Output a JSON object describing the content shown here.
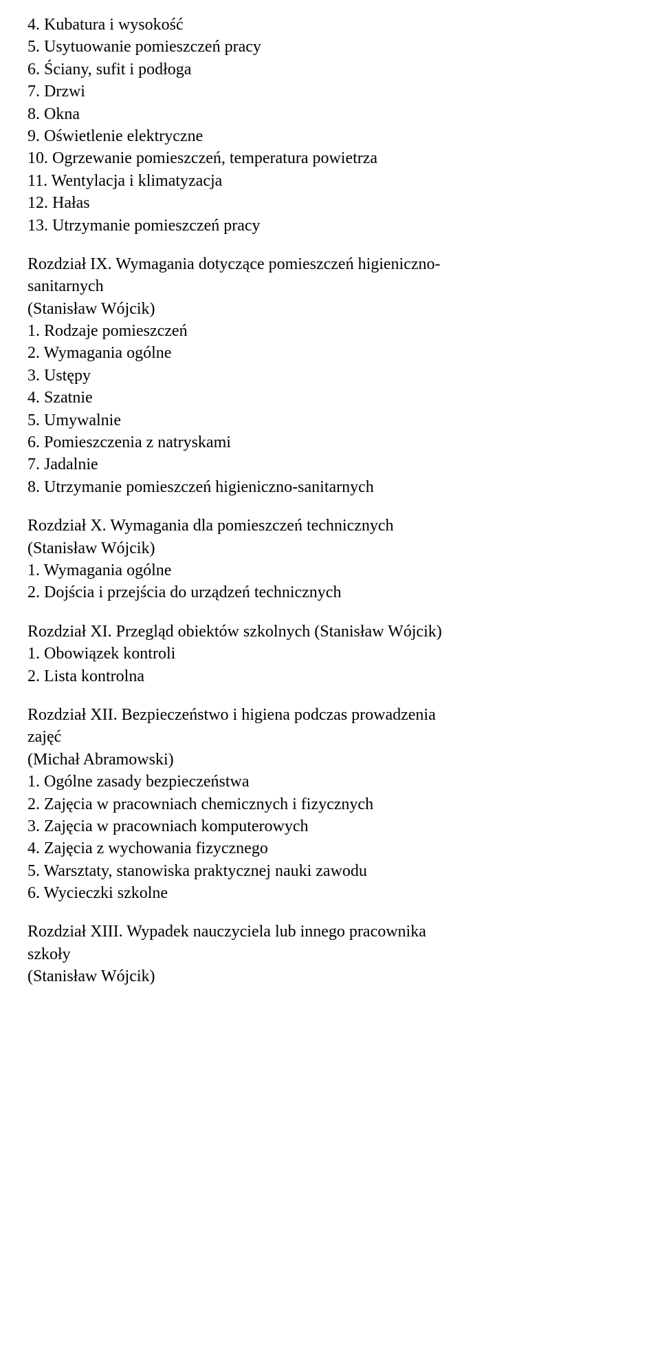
{
  "doc": {
    "font_family": "Times New Roman",
    "font_size_pt": 18,
    "text_color": "#000000",
    "background_color": "#ffffff"
  },
  "section1": {
    "items": [
      "4. Kubatura i wysokość",
      "5. Usytuowanie pomieszczeń pracy",
      "6. Ściany, sufit i podłoga",
      "7. Drzwi",
      "8. Okna",
      "9. Oświetlenie elektryczne",
      "10. Ogrzewanie pomieszczeń, temperatura powietrza",
      "11. Wentylacja i klimatyzacja",
      "12. Hałas",
      "13. Utrzymanie pomieszczeń pracy"
    ]
  },
  "section2": {
    "heading_a": "Rozdział IX. Wymagania dotyczące pomieszczeń higieniczno-",
    "heading_b": "sanitarnych",
    "author": "(Stanisław Wójcik)",
    "items": [
      "1. Rodzaje pomieszczeń",
      "2. Wymagania ogólne",
      "3. Ustępy",
      "4. Szatnie",
      "5. Umywalnie",
      "6. Pomieszczenia z natryskami",
      "7. Jadalnie",
      "8. Utrzymanie pomieszczeń higieniczno-sanitarnych"
    ]
  },
  "section3": {
    "heading": "Rozdział X. Wymagania dla pomieszczeń technicznych",
    "author": "(Stanisław Wójcik)",
    "items": [
      "1. Wymagania ogólne",
      "2. Dojścia i przejścia do urządzeń technicznych"
    ]
  },
  "section4": {
    "heading": "Rozdział XI. Przegląd obiektów szkolnych (Stanisław Wójcik)",
    "items": [
      "1. Obowiązek kontroli",
      "2. Lista kontrolna"
    ]
  },
  "section5": {
    "heading_a": "Rozdział XII. Bezpieczeństwo i higiena podczas prowadzenia",
    "heading_b": "zajęć",
    "author": "(Michał Abramowski)",
    "items": [
      "1. Ogólne zasady bezpieczeństwa",
      "2. Zajęcia w pracowniach chemicznych i fizycznych",
      "3. Zajęcia w pracowniach komputerowych",
      "4. Zajęcia z wychowania fizycznego",
      "5. Warsztaty, stanowiska praktycznej nauki zawodu",
      "6. Wycieczki szkolne"
    ]
  },
  "section6": {
    "heading_a": "Rozdział XIII. Wypadek nauczyciela lub innego pracownika",
    "heading_b": "szkoły",
    "author": "(Stanisław Wójcik)"
  }
}
